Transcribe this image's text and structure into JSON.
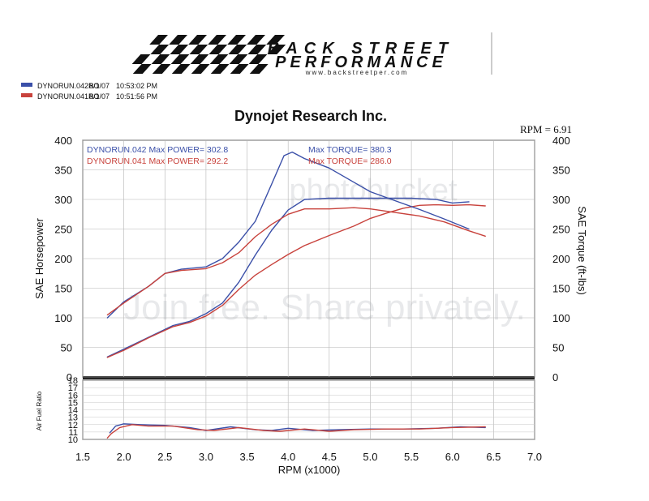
{
  "logo": {
    "line1": "BACK STREET",
    "line2": "PERFORMANCE",
    "url": "www.backstreetper.com"
  },
  "runs": [
    {
      "label": "DYNORUN.042RO",
      "date": "8/1/07",
      "time": "10:53:02 PM",
      "color": "#3a4fa8"
    },
    {
      "label": "DYNORUN.041RO",
      "date": "8/1/07",
      "time": "10:51:56 PM",
      "color": "#c8423c"
    }
  ],
  "title": "Dynojet  Research  Inc.",
  "rpm_note": "RPM = 6.91",
  "annotations": {
    "run042_power": "DYNORUN.042  Max POWER= 302.8",
    "run041_power": "DYNORUN.041  Max POWER= 292.2",
    "run042_torque": "Max TORQUE= 380.3",
    "run041_torque": "Max TORQUE= 286.0"
  },
  "watermark": {
    "top": "photobucket",
    "middle": "Join free. Share privately."
  },
  "chart_data": {
    "type": "line",
    "title": "Dynojet  Research  Inc.",
    "xlabel": "RPM (x1000)",
    "ylabel_left": "SAE Horsepower",
    "ylabel_right": "SAE Torque (ft-lbs)",
    "ylabel_afr": "Air Fuel Ratio",
    "xlim": [
      1.5,
      7.0
    ],
    "ylim": [
      0,
      400
    ],
    "afr_ylim": [
      10,
      18
    ],
    "x_ticks": [
      "1.5",
      "2.0",
      "2.5",
      "3.0",
      "3.5",
      "4.0",
      "4.5",
      "5.0",
      "5.5",
      "6.0",
      "6.5",
      "7.0"
    ],
    "y_ticks_left": [
      "400",
      "350",
      "300",
      "250",
      "200",
      "150",
      "100",
      "50",
      "0"
    ],
    "y_ticks_right": [
      "400",
      "350",
      "300",
      "250",
      "200",
      "150",
      "100",
      "50",
      "0"
    ],
    "afr_ticks": [
      "18",
      "17",
      "16",
      "15",
      "14",
      "13",
      "12",
      "11",
      "10"
    ],
    "grid": true,
    "series": [
      {
        "run": "DYNORUN.042",
        "measure": "horsepower",
        "color": "#3a4fa8",
        "points": [
          [
            1.8,
            34
          ],
          [
            2.0,
            47
          ],
          [
            2.3,
            67
          ],
          [
            2.6,
            87
          ],
          [
            2.8,
            94
          ],
          [
            3.0,
            107
          ],
          [
            3.2,
            125
          ],
          [
            3.4,
            160
          ],
          [
            3.6,
            206
          ],
          [
            3.8,
            248
          ],
          [
            4.0,
            282
          ],
          [
            4.2,
            300
          ],
          [
            4.5,
            302
          ],
          [
            5.0,
            302
          ],
          [
            5.5,
            302
          ],
          [
            5.8,
            300
          ],
          [
            6.0,
            294
          ],
          [
            6.2,
            296
          ]
        ]
      },
      {
        "run": "DYNORUN.041",
        "measure": "horsepower",
        "color": "#c8423c",
        "points": [
          [
            1.8,
            33
          ],
          [
            2.0,
            45
          ],
          [
            2.3,
            66
          ],
          [
            2.6,
            85
          ],
          [
            2.8,
            92
          ],
          [
            3.0,
            103
          ],
          [
            3.2,
            121
          ],
          [
            3.4,
            148
          ],
          [
            3.6,
            172
          ],
          [
            3.8,
            190
          ],
          [
            4.0,
            207
          ],
          [
            4.2,
            222
          ],
          [
            4.5,
            239
          ],
          [
            4.8,
            255
          ],
          [
            5.0,
            268
          ],
          [
            5.2,
            277
          ],
          [
            5.4,
            285
          ],
          [
            5.6,
            290
          ],
          [
            5.8,
            291
          ],
          [
            6.0,
            290
          ],
          [
            6.2,
            291
          ],
          [
            6.4,
            289
          ]
        ]
      },
      {
        "run": "DYNORUN.042",
        "measure": "torque",
        "color": "#3a4fa8",
        "points": [
          [
            1.8,
            100
          ],
          [
            2.0,
            127
          ],
          [
            2.3,
            153
          ],
          [
            2.5,
            175
          ],
          [
            2.7,
            182
          ],
          [
            3.0,
            186
          ],
          [
            3.2,
            200
          ],
          [
            3.4,
            228
          ],
          [
            3.6,
            263
          ],
          [
            3.8,
            326
          ],
          [
            3.95,
            374
          ],
          [
            4.05,
            380
          ],
          [
            4.2,
            369
          ],
          [
            4.5,
            353
          ],
          [
            4.8,
            329
          ],
          [
            5.0,
            313
          ],
          [
            5.3,
            298
          ],
          [
            5.6,
            283
          ],
          [
            5.9,
            267
          ],
          [
            6.2,
            250
          ]
        ]
      },
      {
        "run": "DYNORUN.041",
        "measure": "torque",
        "color": "#c8423c",
        "points": [
          [
            1.8,
            105
          ],
          [
            2.0,
            125
          ],
          [
            2.3,
            153
          ],
          [
            2.5,
            175
          ],
          [
            2.7,
            180
          ],
          [
            3.0,
            183
          ],
          [
            3.2,
            193
          ],
          [
            3.4,
            210
          ],
          [
            3.6,
            237
          ],
          [
            3.8,
            258
          ],
          [
            4.0,
            275
          ],
          [
            4.2,
            284
          ],
          [
            4.5,
            284
          ],
          [
            4.8,
            286
          ],
          [
            5.0,
            284
          ],
          [
            5.3,
            278
          ],
          [
            5.6,
            272
          ],
          [
            5.9,
            262
          ],
          [
            6.2,
            247
          ],
          [
            6.4,
            238
          ]
        ]
      },
      {
        "run": "DYNORUN.042",
        "measure": "air_fuel_ratio",
        "color": "#3a4fa8",
        "points": [
          [
            1.83,
            10.9
          ],
          [
            1.9,
            11.8
          ],
          [
            2.0,
            12.1
          ],
          [
            2.2,
            12.0
          ],
          [
            2.5,
            11.9
          ],
          [
            2.8,
            11.6
          ],
          [
            3.0,
            11.2
          ],
          [
            3.3,
            11.7
          ],
          [
            3.6,
            11.3
          ],
          [
            3.8,
            11.2
          ],
          [
            4.0,
            11.5
          ],
          [
            4.3,
            11.2
          ],
          [
            4.6,
            11.3
          ],
          [
            5.0,
            11.4
          ],
          [
            5.4,
            11.4
          ],
          [
            5.8,
            11.5
          ],
          [
            6.1,
            11.7
          ],
          [
            6.4,
            11.6
          ]
        ]
      },
      {
        "run": "DYNORUN.041",
        "measure": "air_fuel_ratio",
        "color": "#c8423c",
        "points": [
          [
            1.8,
            10.2
          ],
          [
            1.85,
            10.8
          ],
          [
            1.95,
            11.6
          ],
          [
            2.1,
            12.0
          ],
          [
            2.3,
            11.8
          ],
          [
            2.6,
            11.8
          ],
          [
            2.9,
            11.3
          ],
          [
            3.1,
            11.2
          ],
          [
            3.4,
            11.6
          ],
          [
            3.7,
            11.2
          ],
          [
            3.9,
            11.1
          ],
          [
            4.2,
            11.4
          ],
          [
            4.5,
            11.1
          ],
          [
            4.8,
            11.3
          ],
          [
            5.2,
            11.4
          ],
          [
            5.6,
            11.4
          ],
          [
            6.0,
            11.6
          ],
          [
            6.4,
            11.7
          ]
        ]
      }
    ]
  }
}
